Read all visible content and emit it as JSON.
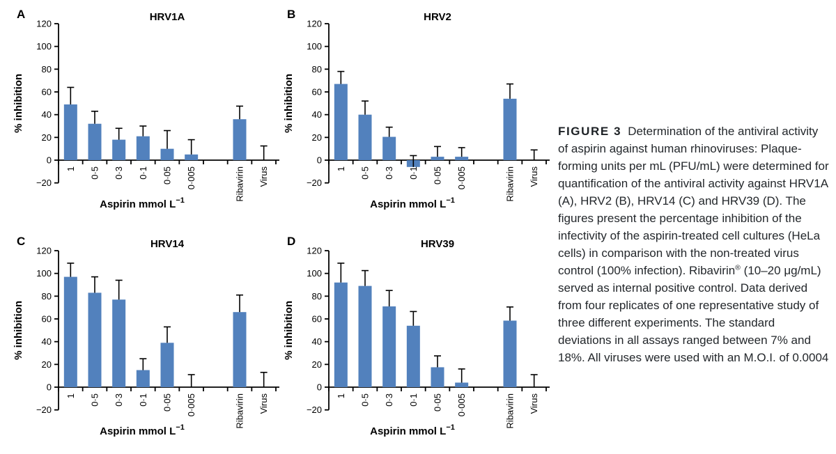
{
  "page": {
    "background": "#ffffff"
  },
  "caption": {
    "label": "FIGURE 3",
    "segments": [
      {
        "text": "Determination of the antiviral activity of aspirin against human rhinoviruses: Plaque-forming units per mL (PFU/mL) were determined for quantification of the antiviral activity against HRV1A (A), HRV2 (B), HRV14 (C) and HRV39 (D). The figures present the percentage inhibition of the infectivity of the aspirin-treated cell cultures (HeLa cells) in comparison with the non-treated virus control (100% infection). Ribavirin"
      },
      {
        "text": "®",
        "sup": true
      },
      {
        "text": " (10–20 μg/mL) served as internal positive control. Data derived from four replicates of one representative study of three different experiments. The standard deviations in all assays ranged between 7% and 18%. All viruses were used with an M.O.I. of 0.0004"
      }
    ]
  },
  "chart_data": {
    "type": "bar",
    "bar_color": "#5281BD",
    "axis_color": "#000000",
    "error_bar_color": "#000000",
    "ylabel": "% inhibition",
    "xlabel_base": "Aspirin mmol L",
    "xlabel_sup": "−1",
    "ylim": [
      -20,
      120
    ],
    "yticks": [
      120,
      100,
      80,
      60,
      40,
      20,
      0,
      -20
    ],
    "grid": false,
    "legend": false,
    "categories": [
      "1",
      "0·5",
      "0·3",
      "0·1",
      "0·05",
      "0·005",
      "",
      "Ribavirin",
      "Virus"
    ],
    "panels": [
      {
        "panel": "A",
        "title": "HRV1A",
        "values": [
          49,
          32,
          18,
          21,
          10,
          5,
          null,
          36,
          0
        ],
        "whisker_top": [
          64,
          43,
          28,
          30,
          26,
          18,
          null,
          47.5,
          12.5
        ]
      },
      {
        "panel": "B",
        "title": "HRV2",
        "values": [
          67,
          40,
          20.5,
          -6,
          3,
          3,
          null,
          54,
          0
        ],
        "whisker_top": [
          78,
          52,
          29,
          4,
          12,
          11,
          null,
          67,
          9
        ]
      },
      {
        "panel": "C",
        "title": "HRV14",
        "values": [
          97,
          83,
          77,
          15,
          39,
          0,
          null,
          66,
          0
        ],
        "whisker_top": [
          109,
          97,
          94,
          25,
          53,
          11,
          null,
          81,
          13
        ]
      },
      {
        "panel": "D",
        "title": "HRV39",
        "values": [
          92,
          89,
          71,
          54,
          17.5,
          4,
          null,
          58.5,
          0
        ],
        "whisker_top": [
          109,
          102.5,
          85,
          66.5,
          27.5,
          16,
          null,
          70.5,
          11
        ]
      }
    ]
  }
}
